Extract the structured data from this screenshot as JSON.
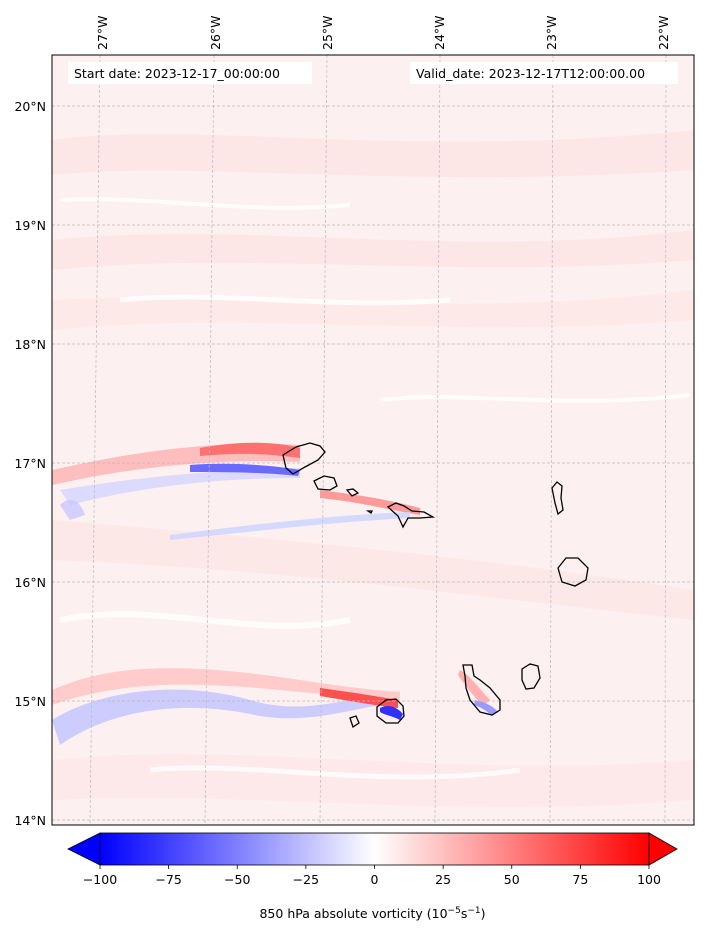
{
  "map": {
    "start_date_text": "Start date: 2023-12-17_00:00:00",
    "valid_date_text": "Valid_date: 2023-12-17T12:00:00.00",
    "lon_ticks": [
      "27°W",
      "26°W",
      "25°W",
      "24°W",
      "23°W",
      "22°W"
    ],
    "lat_ticks": [
      "20°N",
      "19°N",
      "18°N",
      "17°N",
      "16°N",
      "15°N",
      "14°N"
    ],
    "islands": [
      "santo-antao",
      "sao-vicente",
      "santa-luzia",
      "sao-nicolau",
      "sal",
      "boa-vista",
      "maio",
      "santiago",
      "fogo",
      "brava"
    ],
    "colors": {
      "negative": "#0000ff",
      "zero": "#ffffff",
      "positive": "#ff0000",
      "coastline": "#000000",
      "grid": "#bbbbbb"
    }
  },
  "colorbar": {
    "tick_labels": [
      "−100",
      "−75",
      "−50",
      "−25",
      "0",
      "25",
      "50",
      "75",
      "100"
    ],
    "min": -100,
    "max": 100,
    "label_main": "850 hPa absolute vorticity (10",
    "label_exp1": "−5",
    "label_mid": "s",
    "label_exp2": "−1",
    "label_end": ")"
  }
}
